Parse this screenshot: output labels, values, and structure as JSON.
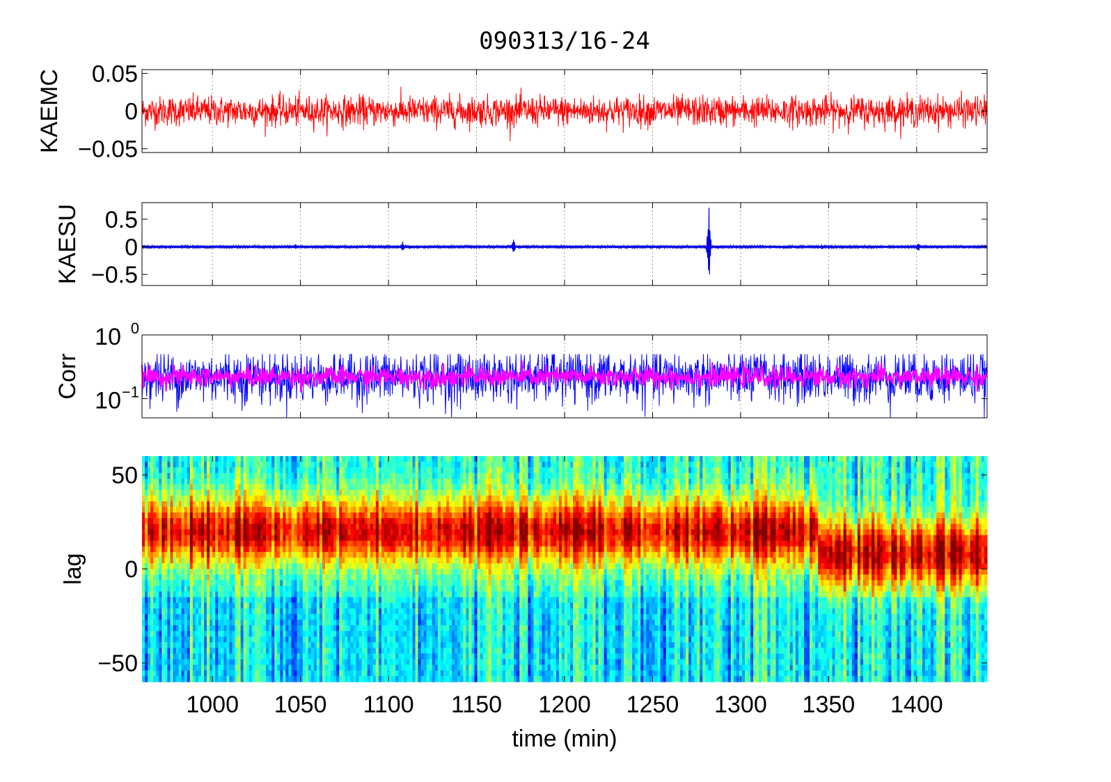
{
  "figure": {
    "title": "090313/16-24",
    "xlabel": "time (min)"
  },
  "colors": {
    "kaemc": "#ff0000",
    "kaesu": "#0000e0",
    "corr_raw": "#0000ff",
    "corr_smooth": "#ff00ff"
  },
  "chart_data": [
    {
      "type": "line",
      "id": "kaemc",
      "ylabel": "KAEMC",
      "xlim": [
        960,
        1440
      ],
      "ylim": [
        -0.055,
        0.055
      ],
      "yticks": [
        {
          "v": 0.05,
          "label": "0.05"
        },
        {
          "v": 0,
          "label": "0"
        },
        {
          "v": -0.05,
          "label": "−0.05"
        }
      ],
      "xticks": [
        1000,
        1050,
        1100,
        1150,
        1200,
        1250,
        1300,
        1350,
        1400
      ],
      "grid": true,
      "series": [
        {
          "color": "kaemc",
          "baseline": 0,
          "amplitude": 0.022,
          "peak": 0.055
        }
      ]
    },
    {
      "type": "line",
      "id": "kaesu",
      "ylabel": "KAESU",
      "xlim": [
        960,
        1440
      ],
      "ylim": [
        -0.7,
        0.8
      ],
      "yticks": [
        {
          "v": 0.5,
          "label": "0.5"
        },
        {
          "v": 0,
          "label": "0"
        },
        {
          "v": -0.5,
          "label": "−0.5"
        }
      ],
      "xticks": [
        1000,
        1050,
        1100,
        1150,
        1200,
        1250,
        1300,
        1350,
        1400
      ],
      "grid": true,
      "series": [
        {
          "color": "kaesu",
          "baseline": 0,
          "amplitude": 0.02,
          "events": [
            {
              "x": 1047,
              "amp": 0.06
            },
            {
              "x": 1108,
              "amp": 0.1
            },
            {
              "x": 1171,
              "amp": 0.14
            },
            {
              "x": 1282,
              "amp": 0.78
            },
            {
              "x": 1346,
              "amp": 0.05
            },
            {
              "x": 1401,
              "amp": 0.08
            }
          ]
        }
      ]
    },
    {
      "type": "line",
      "id": "corr",
      "ylabel": "Corr",
      "scale": "log",
      "xlim": [
        960,
        1440
      ],
      "ylim": [
        0.05,
        1
      ],
      "yticks": [
        {
          "v": 1,
          "base": "10",
          "exp": "0"
        },
        {
          "v": 0.1,
          "base": "10",
          "exp": "−1"
        }
      ],
      "xticks": [
        1000,
        1050,
        1100,
        1150,
        1200,
        1250,
        1300,
        1350,
        1400
      ],
      "grid": true,
      "series": [
        {
          "name": "",
          "color": "corr_raw",
          "center": 0.22,
          "spread": 0.6
        },
        {
          "name": "",
          "color": "corr_smooth",
          "center": 0.22,
          "spread": 0.22
        }
      ]
    },
    {
      "type": "heatmap",
      "id": "lag",
      "ylabel": "lag",
      "xlim": [
        960,
        1440
      ],
      "ylim": [
        -60,
        60
      ],
      "yticks": [
        {
          "v": 50,
          "label": "50"
        },
        {
          "v": 0,
          "label": "0"
        },
        {
          "v": -50,
          "label": "−50"
        }
      ],
      "xticks": [
        1000,
        1050,
        1100,
        1150,
        1200,
        1250,
        1300,
        1350,
        1400
      ],
      "colormap": "jet",
      "peak_lag": 20,
      "peak_lag_late": 8
    }
  ]
}
